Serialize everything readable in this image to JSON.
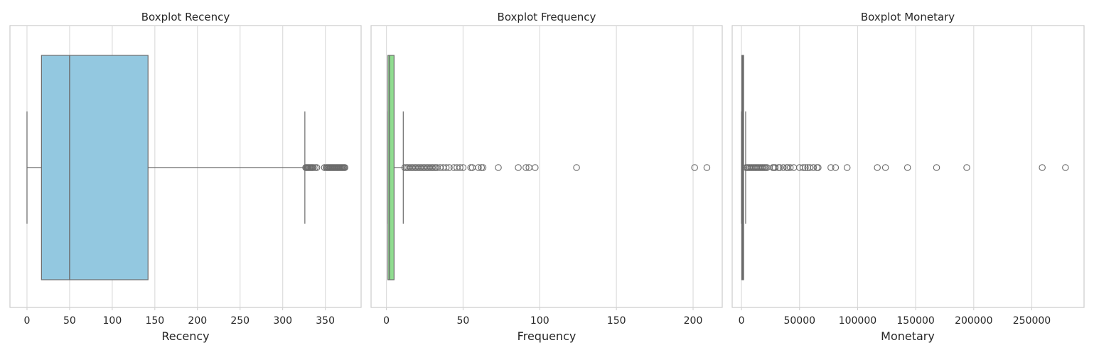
{
  "chart_data": [
    {
      "type": "boxplot",
      "title": "Boxplot Recency",
      "xlabel": "Recency",
      "xlim": [
        -20,
        392
      ],
      "xticks": [
        0,
        50,
        100,
        150,
        200,
        250,
        300,
        350
      ],
      "xtick_labels": [
        "0",
        "50",
        "100",
        "150",
        "200",
        "250",
        "300",
        "350"
      ],
      "grid": true,
      "box_color": "#93c8e0",
      "line_color": "#6b6b6b",
      "whisker_low": 0,
      "q1": 17,
      "median": 50,
      "q3": 142,
      "whisker_high": 326,
      "outliers": [
        327,
        328,
        329,
        330,
        331,
        332,
        333,
        334,
        335,
        336,
        338,
        340,
        349,
        351,
        352,
        353,
        354,
        355,
        356,
        357,
        358,
        359,
        360,
        361,
        362,
        363,
        364,
        365,
        366,
        367,
        368,
        369,
        370,
        371,
        372,
        373
      ]
    },
    {
      "type": "boxplot",
      "title": "Boxplot Frequency",
      "xlabel": "Frequency",
      "xlim": [
        -10,
        219
      ],
      "xticks": [
        0,
        50,
        100,
        150,
        200
      ],
      "xtick_labels": [
        "0",
        "50",
        "100",
        "150",
        "200"
      ],
      "grid": true,
      "box_color": "#8fdc8f",
      "line_color": "#6b6b6b",
      "whisker_low": 1,
      "q1": 1,
      "median": 2,
      "q3": 5,
      "whisker_high": 11,
      "outliers": [
        12,
        13,
        14,
        15,
        16,
        17,
        18,
        19,
        20,
        21,
        22,
        23,
        24,
        25,
        26,
        27,
        28,
        29,
        30,
        31,
        32,
        33,
        35,
        37,
        39,
        41,
        44,
        46,
        48,
        50,
        55,
        56,
        60,
        62,
        63,
        73,
        86,
        91,
        93,
        97,
        124,
        201,
        209
      ]
    },
    {
      "type": "boxplot",
      "title": "Boxplot Monetary",
      "xlabel": "Monetary",
      "xlim": [
        -8000,
        295000
      ],
      "xticks": [
        0,
        50000,
        100000,
        150000,
        200000,
        250000
      ],
      "xtick_labels": [
        "0",
        "50000",
        "100000",
        "150000",
        "200000",
        "250000"
      ],
      "grid": true,
      "box_color": "#6b6b6b",
      "line_color": "#6b6b6b",
      "whisker_low": 0,
      "q1": 300,
      "median": 650,
      "q3": 1600,
      "whisker_high": 3600,
      "outliers": [
        4000,
        5000,
        6000,
        7000,
        8000,
        9000,
        10000,
        11000,
        12000,
        13000,
        14000,
        15000,
        16000,
        17000,
        18000,
        19000,
        20000,
        21000,
        22000,
        27000,
        28000,
        29000,
        32000,
        33000,
        36000,
        39000,
        40000,
        42000,
        45000,
        50000,
        53000,
        55000,
        57000,
        59000,
        62000,
        65000,
        66000,
        77000,
        81000,
        91000,
        117000,
        124000,
        143000,
        168000,
        194000,
        259000,
        279000
      ]
    }
  ]
}
